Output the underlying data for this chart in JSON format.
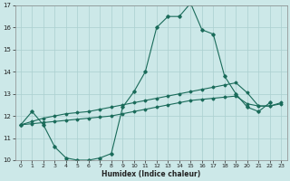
{
  "xlabel": "Humidex (Indice chaleur)",
  "background_color": "#cce8e8",
  "grid_color": "#aacfcf",
  "line_color": "#1a6b5a",
  "xlim": [
    -0.5,
    23.5
  ],
  "ylim": [
    10,
    17
  ],
  "yticks": [
    10,
    11,
    12,
    13,
    14,
    15,
    16,
    17
  ],
  "xticks": [
    0,
    1,
    2,
    3,
    4,
    5,
    6,
    7,
    8,
    9,
    10,
    11,
    12,
    13,
    14,
    15,
    16,
    17,
    18,
    19,
    20,
    21,
    22,
    23
  ],
  "s1_x": [
    0,
    1,
    2,
    3,
    4,
    5,
    6,
    7,
    8,
    9,
    10,
    11,
    12,
    13,
    14,
    15,
    16,
    17,
    18,
    19,
    20,
    21,
    22
  ],
  "s1_y": [
    11.6,
    12.2,
    11.6,
    10.6,
    10.1,
    10.0,
    10.0,
    10.1,
    10.3,
    12.4,
    13.1,
    14.0,
    16.0,
    16.5,
    16.5,
    17.1,
    15.9,
    15.7,
    13.8,
    13.0,
    12.4,
    12.2,
    12.6
  ],
  "s2_x": [
    0,
    1,
    2,
    3,
    4,
    5,
    6,
    7,
    8,
    9,
    10,
    11,
    12,
    13,
    14,
    15,
    16,
    17,
    18,
    19,
    20,
    21,
    22,
    23
  ],
  "s2_y": [
    11.6,
    11.75,
    11.9,
    12.0,
    12.1,
    12.15,
    12.2,
    12.3,
    12.4,
    12.5,
    12.6,
    12.7,
    12.8,
    12.9,
    13.0,
    13.1,
    13.2,
    13.3,
    13.4,
    13.5,
    13.05,
    12.45,
    12.45,
    12.6
  ],
  "s3_x": [
    0,
    1,
    2,
    3,
    4,
    5,
    6,
    7,
    8,
    9,
    10,
    11,
    12,
    13,
    14,
    15,
    16,
    17,
    18,
    19,
    20,
    21,
    22,
    23
  ],
  "s3_y": [
    11.6,
    11.65,
    11.7,
    11.75,
    11.8,
    11.85,
    11.9,
    11.95,
    12.0,
    12.1,
    12.2,
    12.3,
    12.4,
    12.5,
    12.6,
    12.7,
    12.75,
    12.8,
    12.85,
    12.9,
    12.55,
    12.45,
    12.45,
    12.55
  ]
}
